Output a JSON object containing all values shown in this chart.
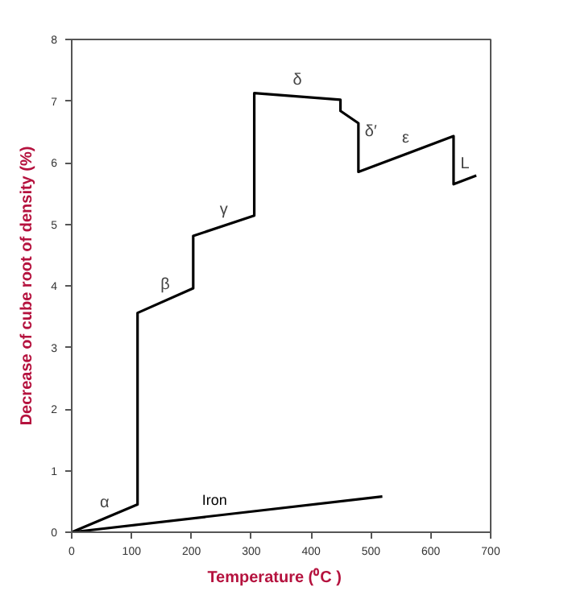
{
  "chart_data": {
    "type": "line",
    "xlabel": "Temperature    (⁰C )",
    "ylabel": "Decrease of cube root of density (%)",
    "series": [
      {
        "color": "#000000",
        "x": [
          0,
          110,
          110,
          203,
          203,
          305,
          305,
          449,
          449,
          479,
          479,
          638,
          638,
          676
        ],
        "values": [
          0,
          0.45,
          3.56,
          3.96,
          4.81,
          5.14,
          7.13,
          7.02,
          6.84,
          6.64,
          5.85,
          6.43,
          5.65,
          5.79
        ]
      },
      {
        "name": "Iron",
        "color": "#000000",
        "x": [
          0,
          519
        ],
        "values": [
          0,
          0.58
        ]
      }
    ],
    "annotations": [
      {
        "text": "α",
        "x": 55,
        "y": 0.225
      },
      {
        "text": "β",
        "x": 156,
        "y": 3.76
      },
      {
        "text": "γ",
        "x": 254,
        "y": 4.98
      },
      {
        "text": "δ",
        "x": 377,
        "y": 7.08
      },
      {
        "text": "δ′",
        "x": 479,
        "y": 6.5
      },
      {
        "text": "ε",
        "x": 558,
        "y": 6.14
      },
      {
        "text": "L",
        "x": 657,
        "y": 5.72
      }
    ],
    "xlim": [
      0,
      700
    ],
    "ylim": [
      0,
      8
    ],
    "xticks": [
      0,
      100,
      200,
      300,
      400,
      500,
      600,
      700
    ],
    "yticks": [
      0,
      1,
      2,
      3,
      4,
      5,
      6,
      7,
      8
    ],
    "grid": false,
    "legend": false,
    "marker": "none",
    "line_style": "solid"
  }
}
